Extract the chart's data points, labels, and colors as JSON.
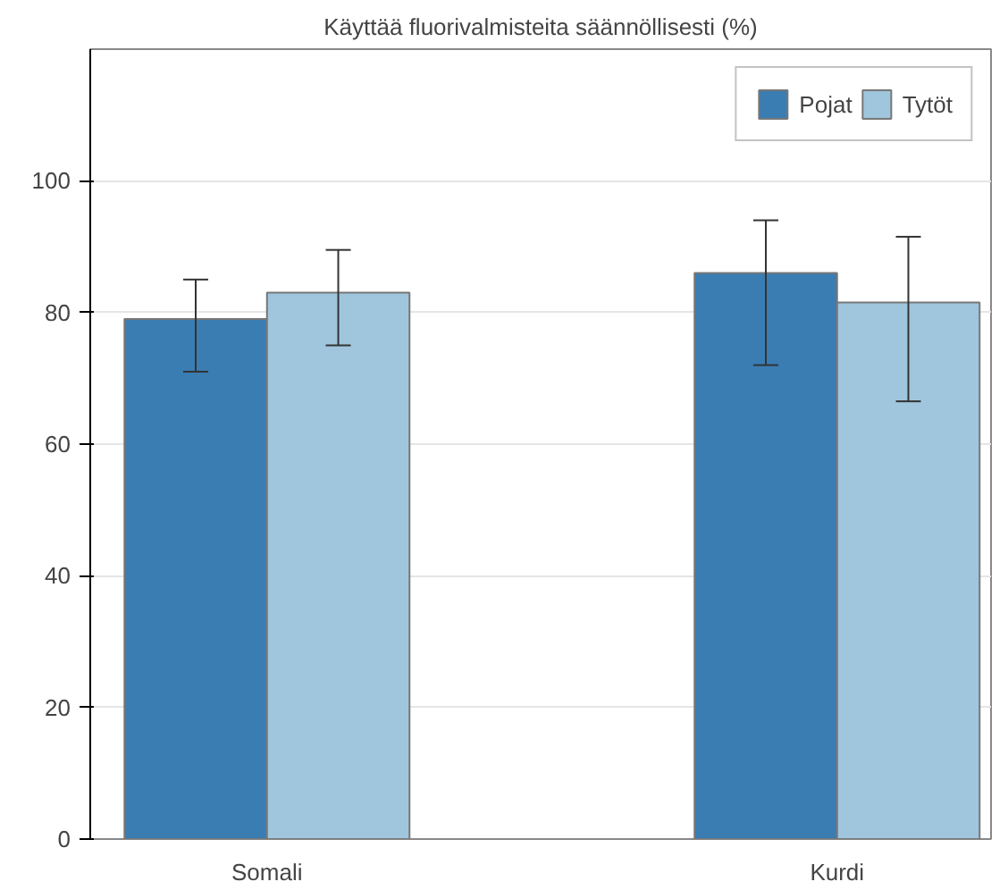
{
  "chart_data": {
    "type": "bar",
    "title": "Käyttää fluorivalmisteita säännöllisesti (%)",
    "categories": [
      "Somali",
      "Kurdi"
    ],
    "series": [
      {
        "name": "Pojat",
        "color": "#3a7db3",
        "values": [
          79,
          86
        ],
        "errors": [
          [
            71,
            85
          ],
          [
            72,
            94
          ]
        ]
      },
      {
        "name": "Tytöt",
        "color": "#9fc6dd",
        "values": [
          83,
          81.5
        ],
        "errors": [
          [
            75,
            89.5
          ],
          [
            66.5,
            91.5
          ]
        ]
      }
    ],
    "ylim": [
      0,
      120
    ],
    "yticks": [
      0,
      20,
      40,
      60,
      80,
      100
    ],
    "grid": "y",
    "legend": "top right"
  }
}
